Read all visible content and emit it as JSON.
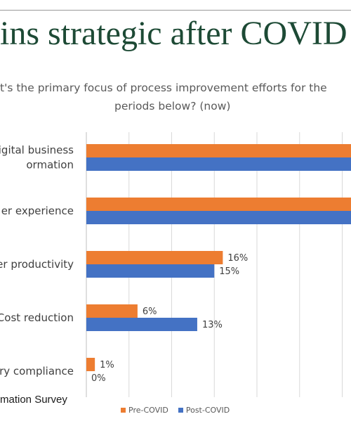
{
  "slide": {
    "title": "ins strategic after COVID",
    "source_text": "mation Survey"
  },
  "chart_data": {
    "type": "bar",
    "orientation": "horizontal",
    "title_line1": "t's the primary focus of process improvement efforts for the",
    "title_line2": "periods below? (now)",
    "categories": [
      "igital business\normation",
      "er experience",
      "er productivity",
      "Cost reduction",
      "ry compliance"
    ],
    "series": [
      {
        "name": "Pre-COVID",
        "color": "#ed7d31",
        "values": [
          null,
          null,
          16,
          6,
          1
        ],
        "labels": [
          "",
          "",
          "16%",
          "6%",
          "1%"
        ]
      },
      {
        "name": "Post-COVID",
        "color": "#4472c4",
        "values": [
          null,
          null,
          15,
          13,
          0
        ],
        "labels": [
          "",
          "",
          "15%",
          "13%",
          "0%"
        ]
      }
    ],
    "xlim": [
      0,
      40
    ],
    "grid": true,
    "legend_position": "bottom"
  }
}
